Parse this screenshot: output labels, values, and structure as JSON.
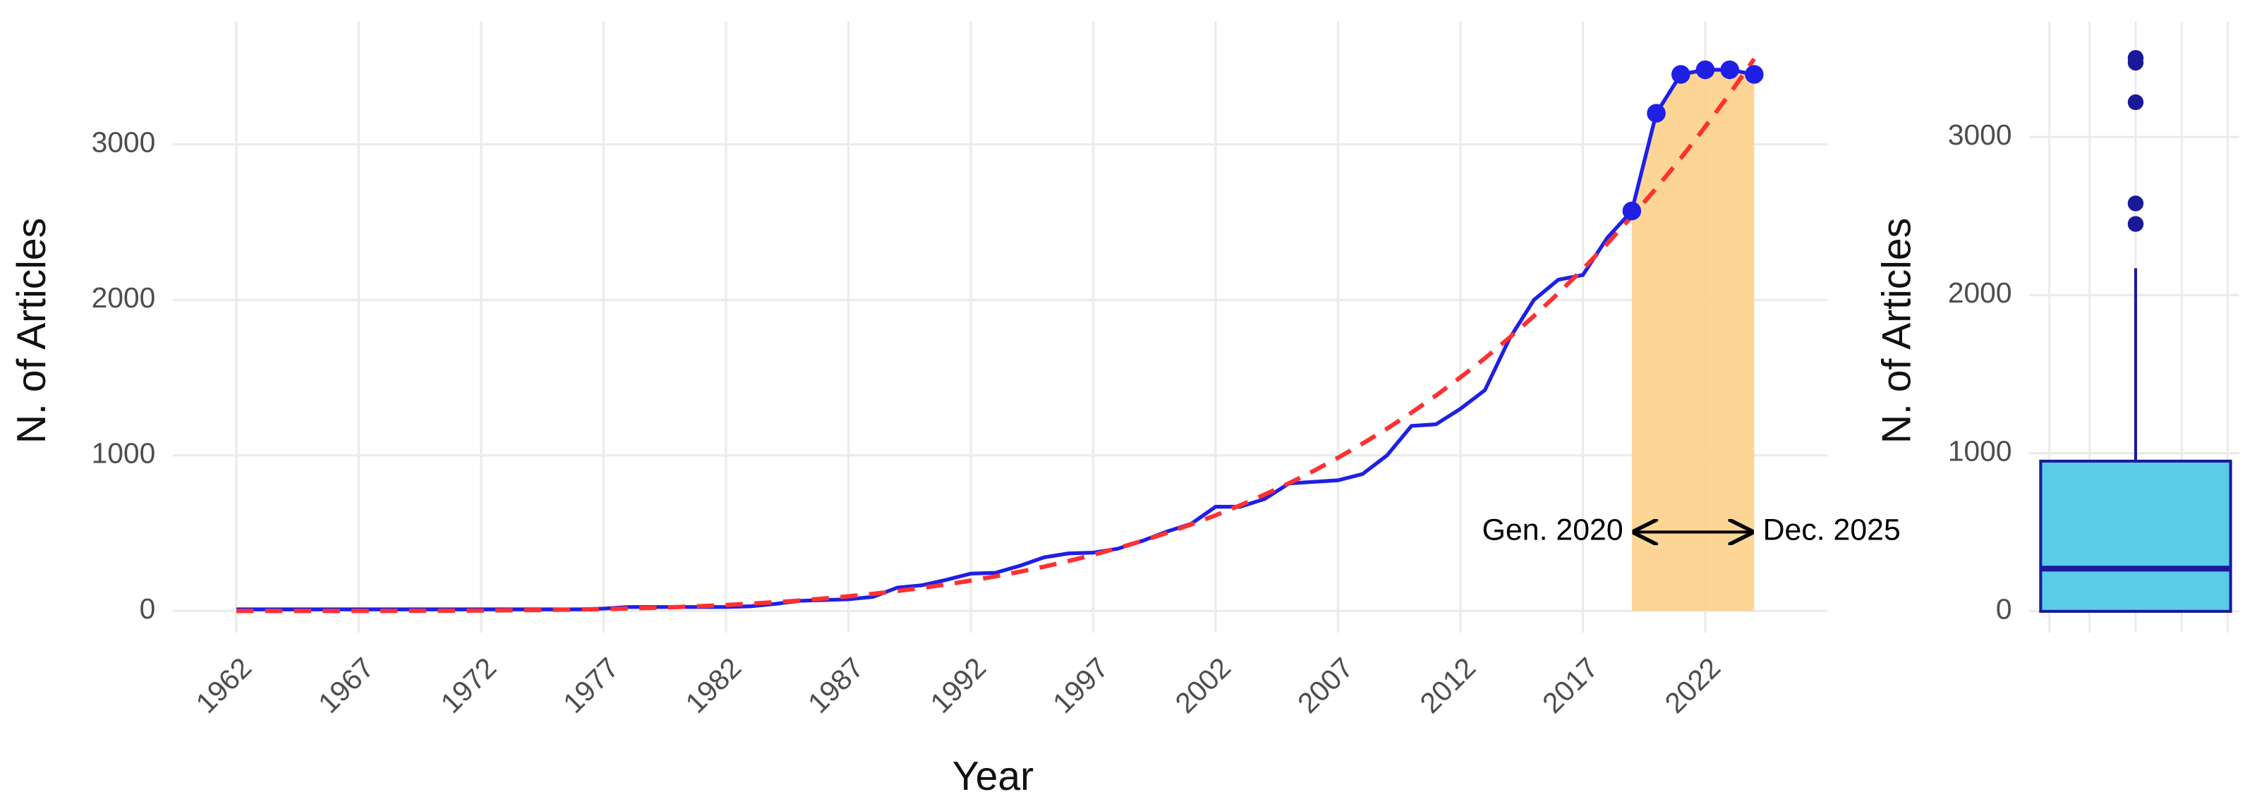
{
  "chart_data": [
    {
      "type": "line",
      "xlabel": "Year",
      "ylabel": "N. of Articles",
      "x": [
        1962,
        1963,
        1964,
        1965,
        1966,
        1967,
        1968,
        1969,
        1970,
        1971,
        1972,
        1973,
        1974,
        1975,
        1976,
        1977,
        1978,
        1979,
        1980,
        1981,
        1982,
        1983,
        1984,
        1985,
        1986,
        1987,
        1988,
        1989,
        1990,
        1991,
        1992,
        1993,
        1994,
        1995,
        1996,
        1997,
        1998,
        1999,
        2000,
        2001,
        2002,
        2003,
        2004,
        2005,
        2006,
        2007,
        2008,
        2009,
        2010,
        2011,
        2012,
        2013,
        2014,
        2015,
        2016,
        2017,
        2018,
        2019,
        2020,
        2021,
        2022,
        2023,
        2024
      ],
      "series": [
        {
          "color": "#1f1fe6",
          "values": [
            10,
            10,
            10,
            10,
            10,
            10,
            10,
            10,
            10,
            10,
            10,
            10,
            10,
            10,
            10,
            15,
            25,
            25,
            25,
            25,
            25,
            30,
            45,
            65,
            70,
            75,
            90,
            150,
            165,
            200,
            240,
            245,
            290,
            345,
            370,
            375,
            400,
            450,
            510,
            560,
            670,
            670,
            720,
            820,
            830,
            840,
            880,
            1000,
            1190,
            1200,
            1300,
            1420,
            1750,
            2000,
            2130,
            2160,
            2400,
            2572,
            3200,
            3450,
            3480,
            3480,
            3450
          ]
        },
        {
          "color": "#ff3030",
          "dash": true,
          "values": [
            0,
            0,
            0,
            0,
            0,
            0,
            0,
            1,
            1,
            2,
            2,
            4,
            5,
            7,
            9,
            12,
            16,
            20,
            25,
            31,
            38,
            47,
            56,
            67,
            80,
            94,
            110,
            128,
            148,
            170,
            195,
            222,
            252,
            285,
            321,
            361,
            404,
            450,
            501,
            556,
            615,
            679,
            748,
            821,
            900,
            985,
            1076,
            1172,
            1275,
            1385,
            1502,
            1625,
            1757,
            1896,
            2043,
            2198,
            2363,
            2536,
            2719,
            2911,
            3114,
            3326,
            3550
          ]
        }
      ],
      "highlight": {
        "xrange": [
          2019,
          2024
        ],
        "color": "#fdd08a",
        "left_label": "Gen. 2020",
        "right_label": "Dec. 2025"
      },
      "xlim": [
        1959.4,
        2027
      ],
      "xticks": [
        1962,
        1967,
        1972,
        1977,
        1982,
        1987,
        1992,
        1997,
        2002,
        2007,
        2012,
        2017,
        2022
      ],
      "ylim": [
        -140,
        3790
      ],
      "yticks": [
        0,
        1000,
        2000,
        3000
      ],
      "grid": true
    },
    {
      "type": "box",
      "ylabel": "N. of Articles",
      "q1": 0,
      "median": 270,
      "q3": 950,
      "whisker_low": 0,
      "whisker_high": 2170,
      "outliers": [
        2450,
        2580,
        3220,
        3470,
        3500
      ],
      "color": "#5bcbea",
      "edge_color": "#1a1a99",
      "ylim": [
        -135,
        3730
      ],
      "yticks": [
        0,
        1000,
        2000,
        3000
      ],
      "grid": true
    }
  ]
}
